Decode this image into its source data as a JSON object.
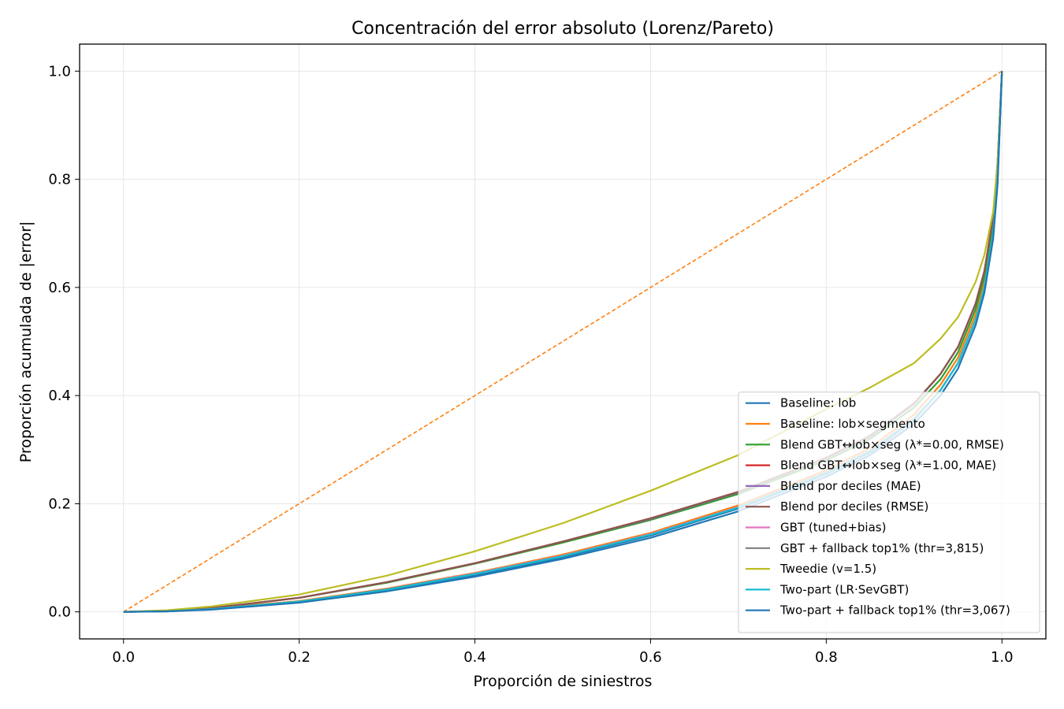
{
  "chart_data": {
    "type": "line",
    "title": "Concentración del error absoluto (Lorenz/Pareto)",
    "xlabel": "Proporción de siniestros",
    "ylabel": "Proporción acumulada de |error|",
    "xlim": [
      -0.05,
      1.05
    ],
    "ylim": [
      -0.05,
      1.05
    ],
    "xticks": [
      "0.0",
      "0.2",
      "0.4",
      "0.6",
      "0.8",
      "1.0"
    ],
    "yticks": [
      "0.0",
      "0.2",
      "0.4",
      "0.6",
      "0.8",
      "1.0"
    ],
    "grid": true,
    "legend_position": "lower-right",
    "reference_line": {
      "style": "dashed",
      "color": "#ff7f0e",
      "x": [
        0,
        1
      ],
      "y": [
        0,
        1
      ]
    },
    "series": [
      {
        "name": "Baseline: lob",
        "color": "#1f77b4",
        "x": [
          0,
          0.05,
          0.1,
          0.2,
          0.3,
          0.4,
          0.5,
          0.6,
          0.7,
          0.8,
          0.85,
          0.9,
          0.93,
          0.95,
          0.97,
          0.98,
          0.99,
          0.995,
          1.0
        ],
        "y": [
          0,
          0.001,
          0.005,
          0.018,
          0.04,
          0.068,
          0.101,
          0.141,
          0.191,
          0.255,
          0.295,
          0.355,
          0.41,
          0.46,
          0.54,
          0.6,
          0.7,
          0.8,
          1.0
        ]
      },
      {
        "name": "Baseline: lob×segmento",
        "color": "#ff7f0e",
        "x": [
          0,
          0.05,
          0.1,
          0.2,
          0.3,
          0.4,
          0.5,
          0.6,
          0.7,
          0.8,
          0.85,
          0.9,
          0.93,
          0.95,
          0.97,
          0.98,
          0.99,
          0.995,
          1.0
        ],
        "y": [
          0,
          0.002,
          0.006,
          0.02,
          0.043,
          0.072,
          0.106,
          0.146,
          0.197,
          0.262,
          0.303,
          0.365,
          0.42,
          0.47,
          0.55,
          0.61,
          0.71,
          0.81,
          1.0
        ]
      },
      {
        "name": "Blend GBT↔lob×seg (λ*=0.00, RMSE)",
        "color": "#2ca02c",
        "x": [
          0,
          0.05,
          0.1,
          0.2,
          0.3,
          0.4,
          0.5,
          0.6,
          0.7,
          0.8,
          0.85,
          0.9,
          0.93,
          0.95,
          0.97,
          0.98,
          0.99,
          0.995,
          1.0
        ],
        "y": [
          0,
          0.002,
          0.007,
          0.026,
          0.054,
          0.089,
          0.128,
          0.17,
          0.218,
          0.28,
          0.32,
          0.378,
          0.43,
          0.48,
          0.56,
          0.62,
          0.72,
          0.82,
          1.0
        ]
      },
      {
        "name": "Blend GBT↔lob×seg (λ*=1.00, MAE)",
        "color": "#d62728",
        "x": [
          0,
          0.05,
          0.1,
          0.2,
          0.3,
          0.4,
          0.5,
          0.6,
          0.7,
          0.8,
          0.85,
          0.9,
          0.93,
          0.95,
          0.97,
          0.98,
          0.99,
          0.995,
          1.0
        ],
        "y": [
          0,
          0.002,
          0.007,
          0.026,
          0.055,
          0.09,
          0.13,
          0.173,
          0.222,
          0.285,
          0.325,
          0.385,
          0.44,
          0.49,
          0.57,
          0.63,
          0.73,
          0.83,
          1.0
        ]
      },
      {
        "name": "Blend por deciles (MAE)",
        "color": "#9467bd",
        "x": [
          0,
          0.05,
          0.1,
          0.2,
          0.3,
          0.4,
          0.5,
          0.6,
          0.7,
          0.8,
          0.85,
          0.9,
          0.93,
          0.95,
          0.97,
          0.98,
          0.99,
          0.995,
          1.0
        ],
        "y": [
          0,
          0.002,
          0.007,
          0.026,
          0.055,
          0.09,
          0.13,
          0.172,
          0.221,
          0.284,
          0.324,
          0.384,
          0.44,
          0.49,
          0.57,
          0.63,
          0.73,
          0.83,
          1.0
        ]
      },
      {
        "name": "Blend por deciles (RMSE)",
        "color": "#8c564b",
        "x": [
          0,
          0.05,
          0.1,
          0.2,
          0.3,
          0.4,
          0.5,
          0.6,
          0.7,
          0.8,
          0.85,
          0.9,
          0.93,
          0.95,
          0.97,
          0.98,
          0.99,
          0.995,
          1.0
        ],
        "y": [
          0,
          0.002,
          0.007,
          0.026,
          0.055,
          0.09,
          0.13,
          0.173,
          0.222,
          0.285,
          0.326,
          0.386,
          0.44,
          0.49,
          0.57,
          0.63,
          0.73,
          0.83,
          1.0
        ]
      },
      {
        "name": "GBT (tuned+bias)",
        "color": "#e377c2",
        "x": [
          0,
          0.05,
          0.1,
          0.2,
          0.3,
          0.4,
          0.5,
          0.6,
          0.7,
          0.8,
          0.85,
          0.9,
          0.93,
          0.95,
          0.97,
          0.98,
          0.99,
          0.995,
          1.0
        ],
        "y": [
          0,
          0.001,
          0.005,
          0.019,
          0.042,
          0.071,
          0.104,
          0.144,
          0.194,
          0.258,
          0.298,
          0.358,
          0.41,
          0.46,
          0.54,
          0.6,
          0.7,
          0.8,
          1.0
        ]
      },
      {
        "name": "GBT + fallback top1% (thr=3,815)",
        "color": "#7f7f7f",
        "x": [
          0,
          0.05,
          0.1,
          0.2,
          0.3,
          0.4,
          0.5,
          0.6,
          0.7,
          0.8,
          0.85,
          0.9,
          0.93,
          0.95,
          0.97,
          0.98,
          0.99,
          0.995,
          1.0
        ],
        "y": [
          0,
          0.001,
          0.005,
          0.019,
          0.042,
          0.07,
          0.103,
          0.143,
          0.193,
          0.257,
          0.297,
          0.357,
          0.41,
          0.46,
          0.54,
          0.6,
          0.7,
          0.8,
          1.0
        ]
      },
      {
        "name": "Tweedie (v=1.5)",
        "color": "#bcbd22",
        "x": [
          0,
          0.05,
          0.1,
          0.2,
          0.3,
          0.4,
          0.5,
          0.6,
          0.7,
          0.8,
          0.85,
          0.9,
          0.93,
          0.95,
          0.97,
          0.98,
          0.99,
          0.995,
          1.0
        ],
        "y": [
          0,
          0.003,
          0.01,
          0.032,
          0.067,
          0.112,
          0.164,
          0.224,
          0.29,
          0.375,
          0.415,
          0.46,
          0.505,
          0.545,
          0.61,
          0.66,
          0.74,
          0.83,
          1.0
        ]
      },
      {
        "name": "Two-part (LR·SevGBT)",
        "color": "#17becf",
        "x": [
          0,
          0.05,
          0.1,
          0.2,
          0.3,
          0.4,
          0.5,
          0.6,
          0.7,
          0.8,
          0.85,
          0.9,
          0.93,
          0.95,
          0.97,
          0.98,
          0.99,
          0.995,
          1.0
        ],
        "y": [
          0,
          0.001,
          0.005,
          0.019,
          0.041,
          0.07,
          0.103,
          0.143,
          0.193,
          0.257,
          0.297,
          0.357,
          0.41,
          0.46,
          0.54,
          0.6,
          0.7,
          0.8,
          1.0
        ]
      },
      {
        "name": "Two-part + fallback top1% (thr=3,067)",
        "color": "#1f77b4",
        "x": [
          0,
          0.05,
          0.1,
          0.2,
          0.3,
          0.4,
          0.5,
          0.6,
          0.7,
          0.8,
          0.85,
          0.9,
          0.93,
          0.95,
          0.97,
          0.98,
          0.99,
          0.995,
          1.0
        ],
        "y": [
          0,
          0.001,
          0.004,
          0.017,
          0.038,
          0.065,
          0.098,
          0.137,
          0.186,
          0.25,
          0.29,
          0.348,
          0.4,
          0.45,
          0.53,
          0.59,
          0.69,
          0.79,
          1.0
        ]
      }
    ]
  }
}
